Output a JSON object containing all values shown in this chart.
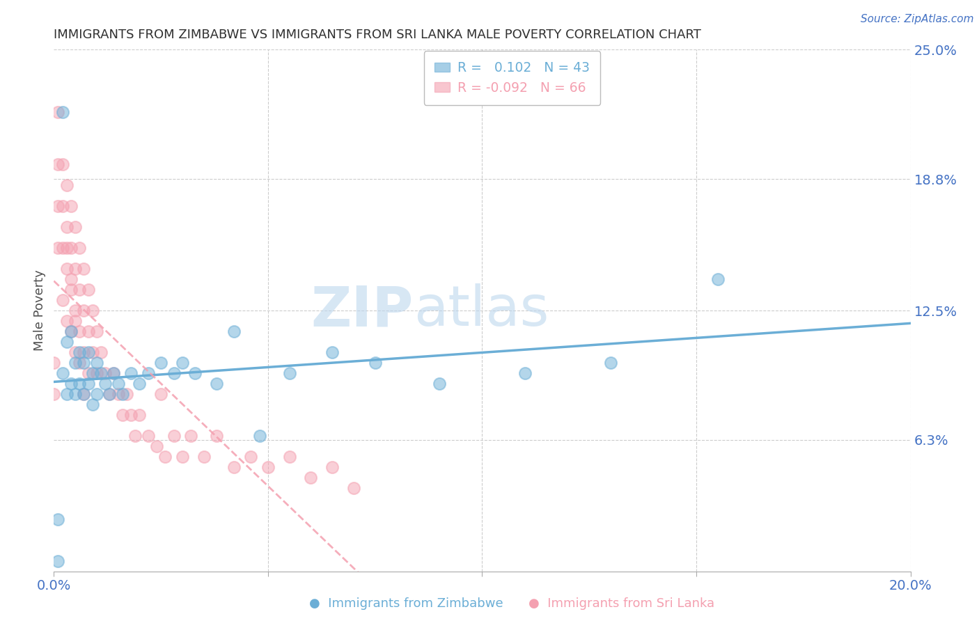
{
  "title": "IMMIGRANTS FROM ZIMBABWE VS IMMIGRANTS FROM SRI LANKA MALE POVERTY CORRELATION CHART",
  "source": "Source: ZipAtlas.com",
  "ylabel": "Male Poverty",
  "xlabel_ticks": [
    "0.0%",
    "",
    "",
    "",
    "20.0%"
  ],
  "xlabel_vals": [
    0.0,
    0.05,
    0.1,
    0.15,
    0.2
  ],
  "ylabel_ticks": [
    "6.3%",
    "12.5%",
    "18.8%",
    "25.0%"
  ],
  "ylabel_vals": [
    0.063,
    0.125,
    0.188,
    0.25
  ],
  "xlim": [
    0.0,
    0.2
  ],
  "ylim": [
    0.0,
    0.25
  ],
  "zimbabwe_color": "#6baed6",
  "srilanka_color": "#f4a0b0",
  "zimbabwe_R": 0.102,
  "zimbabwe_N": 43,
  "srilanka_R": -0.092,
  "srilanka_N": 66,
  "zimbabwe_x": [
    0.001,
    0.001,
    0.002,
    0.003,
    0.003,
    0.004,
    0.004,
    0.005,
    0.005,
    0.006,
    0.006,
    0.007,
    0.007,
    0.008,
    0.008,
    0.009,
    0.009,
    0.01,
    0.01,
    0.011,
    0.012,
    0.013,
    0.014,
    0.015,
    0.016,
    0.018,
    0.02,
    0.022,
    0.025,
    0.028,
    0.03,
    0.033,
    0.038,
    0.042,
    0.048,
    0.055,
    0.065,
    0.075,
    0.09,
    0.11,
    0.13,
    0.155,
    0.002
  ],
  "zimbabwe_y": [
    0.005,
    0.025,
    0.095,
    0.085,
    0.11,
    0.09,
    0.115,
    0.1,
    0.085,
    0.105,
    0.09,
    0.1,
    0.085,
    0.105,
    0.09,
    0.095,
    0.08,
    0.1,
    0.085,
    0.095,
    0.09,
    0.085,
    0.095,
    0.09,
    0.085,
    0.095,
    0.09,
    0.095,
    0.1,
    0.095,
    0.1,
    0.095,
    0.09,
    0.115,
    0.065,
    0.095,
    0.105,
    0.1,
    0.09,
    0.095,
    0.1,
    0.14,
    0.22
  ],
  "srilanka_x": [
    0.0,
    0.0,
    0.001,
    0.001,
    0.001,
    0.001,
    0.002,
    0.002,
    0.002,
    0.002,
    0.003,
    0.003,
    0.003,
    0.003,
    0.004,
    0.004,
    0.004,
    0.004,
    0.005,
    0.005,
    0.005,
    0.005,
    0.006,
    0.006,
    0.006,
    0.007,
    0.007,
    0.007,
    0.008,
    0.008,
    0.008,
    0.009,
    0.009,
    0.01,
    0.01,
    0.011,
    0.012,
    0.013,
    0.014,
    0.015,
    0.016,
    0.017,
    0.018,
    0.019,
    0.02,
    0.022,
    0.024,
    0.026,
    0.028,
    0.03,
    0.032,
    0.035,
    0.038,
    0.042,
    0.046,
    0.05,
    0.055,
    0.06,
    0.065,
    0.07,
    0.025,
    0.003,
    0.004,
    0.005,
    0.006,
    0.007
  ],
  "srilanka_y": [
    0.1,
    0.085,
    0.22,
    0.195,
    0.175,
    0.155,
    0.195,
    0.175,
    0.155,
    0.13,
    0.185,
    0.165,
    0.145,
    0.12,
    0.175,
    0.155,
    0.135,
    0.115,
    0.165,
    0.145,
    0.125,
    0.105,
    0.155,
    0.135,
    0.115,
    0.145,
    0.125,
    0.105,
    0.135,
    0.115,
    0.095,
    0.125,
    0.105,
    0.115,
    0.095,
    0.105,
    0.095,
    0.085,
    0.095,
    0.085,
    0.075,
    0.085,
    0.075,
    0.065,
    0.075,
    0.065,
    0.06,
    0.055,
    0.065,
    0.055,
    0.065,
    0.055,
    0.065,
    0.05,
    0.055,
    0.05,
    0.055,
    0.045,
    0.05,
    0.04,
    0.085,
    0.155,
    0.14,
    0.12,
    0.1,
    0.085
  ],
  "watermark_zip": "ZIP",
  "watermark_atlas": "atlas",
  "background_color": "#ffffff",
  "grid_color": "#cccccc",
  "tick_label_color": "#4472c4",
  "title_color": "#303030",
  "axis_label_color": "#505050"
}
